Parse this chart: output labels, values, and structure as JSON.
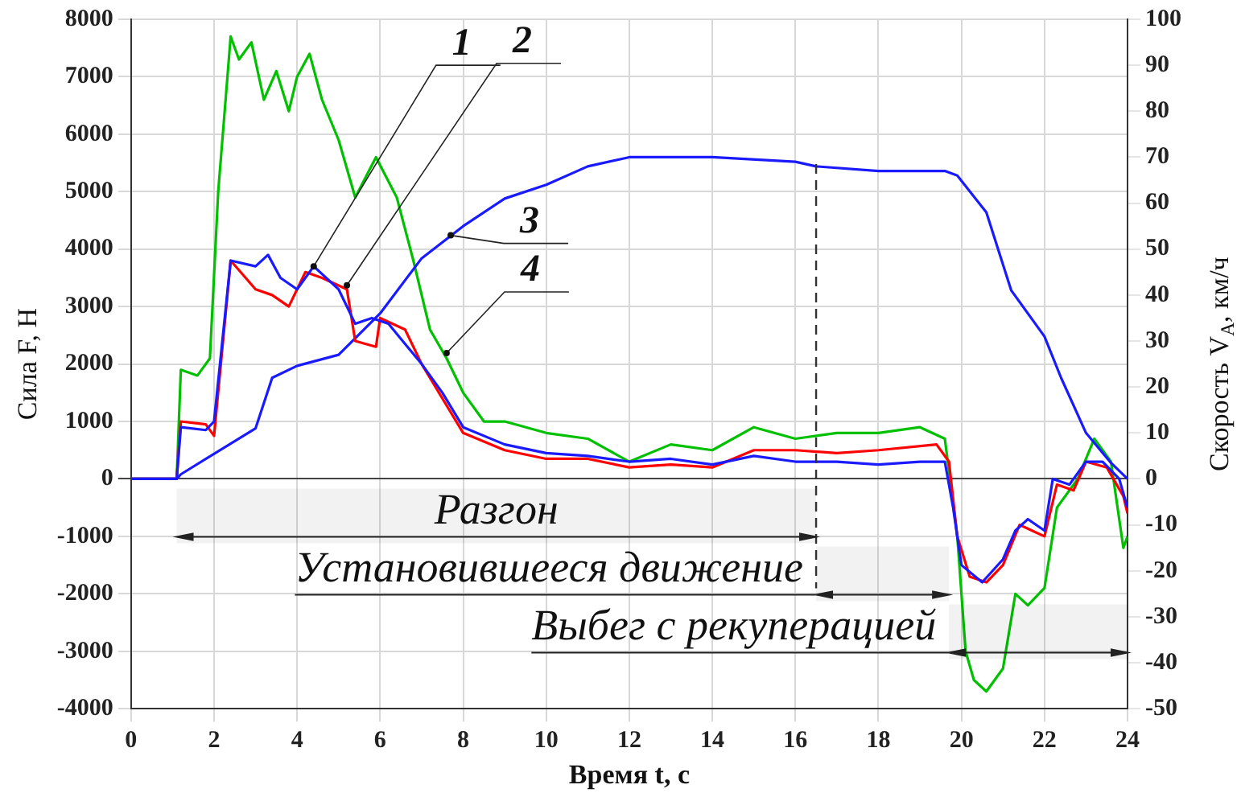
{
  "chart_data": {
    "type": "line",
    "xlabel": "Время t, с",
    "ylabel": "Сила F, Н",
    "y2label": "Скорость V$_{A}$, км/ч",
    "xlim": [
      0,
      24
    ],
    "xticks": [
      0,
      2,
      4,
      6,
      8,
      10,
      12,
      14,
      16,
      18,
      20,
      22,
      24
    ],
    "ylim": [
      -4000,
      8000
    ],
    "yticks": [
      -4000,
      -3000,
      -2000,
      -1000,
      0,
      1000,
      2000,
      3000,
      4000,
      5000,
      6000,
      7000,
      8000
    ],
    "y2lim": [
      -50,
      100
    ],
    "y2ticks": [
      -50,
      -40,
      -30,
      -20,
      -10,
      0,
      10,
      20,
      30,
      40,
      50,
      60,
      70,
      80,
      90,
      100
    ],
    "grid": true,
    "legend": false,
    "series": [
      {
        "color": "#1a1aff",
        "x": [
          0,
          1.1,
          1.2,
          1.8,
          2.0,
          2.4,
          3.0,
          3.3,
          3.6,
          4.0,
          4.4,
          5.0,
          5.4,
          5.8,
          6.2,
          7.0,
          7.5,
          8,
          9,
          10,
          11,
          12,
          13,
          14,
          15,
          16,
          17,
          18,
          19,
          19.6,
          19.8,
          20,
          20.5,
          21,
          21.3,
          21.6,
          22,
          22.2,
          22.6,
          23,
          23.4,
          23.8,
          24
        ],
        "values": [
          0,
          0,
          900,
          850,
          1000,
          3800,
          3700,
          3900,
          3500,
          3300,
          3700,
          3300,
          2700,
          2800,
          2700,
          2000,
          1500,
          900,
          600,
          450,
          400,
          300,
          350,
          250,
          400,
          300,
          300,
          250,
          300,
          300,
          -500,
          -1500,
          -1800,
          -1400,
          -900,
          -700,
          -900,
          0,
          -100,
          300,
          300,
          0,
          -500
        ]
      },
      {
        "color": "#ff0000",
        "x": [
          0,
          1.1,
          1.2,
          1.8,
          2.0,
          2.4,
          3.0,
          3.4,
          3.8,
          4.2,
          4.6,
          5.2,
          5.4,
          5.9,
          6.0,
          6.6,
          7.0,
          8,
          9,
          10,
          11,
          12,
          13,
          14,
          15,
          16,
          17,
          18,
          19.4,
          19.7,
          19.9,
          20.2,
          20.6,
          21,
          21.4,
          21.7,
          22,
          22.3,
          22.7,
          23,
          23.5,
          23.9,
          24
        ],
        "values": [
          0,
          0,
          1000,
          950,
          750,
          3800,
          3300,
          3200,
          3000,
          3600,
          3500,
          3300,
          2400,
          2300,
          2800,
          2600,
          2000,
          800,
          500,
          350,
          350,
          200,
          250,
          200,
          500,
          500,
          450,
          500,
          600,
          300,
          -1000,
          -1700,
          -1800,
          -1500,
          -800,
          -900,
          -1000,
          -100,
          -200,
          300,
          200,
          -300,
          -600
        ]
      },
      {
        "color": "#1a1aff",
        "axis": "y2",
        "x": [
          0,
          1.1,
          1.2,
          3.0,
          3.4,
          4,
          5,
          6,
          7,
          8,
          9,
          10,
          11,
          12,
          14,
          16,
          16.5,
          18,
          19.6,
          19.9,
          20.6,
          21.2,
          22,
          22.4,
          23,
          23.6,
          24
        ],
        "values": [
          0,
          0,
          1,
          11,
          22,
          24.6,
          27,
          36,
          48,
          55,
          61,
          64,
          68,
          70,
          70,
          69,
          68,
          67,
          67,
          66,
          58,
          41,
          31,
          22,
          10,
          3.5,
          0
        ]
      },
      {
        "color": "#00c000",
        "x": [
          0,
          1.1,
          1.2,
          1.6,
          1.9,
          2.1,
          2.4,
          2.6,
          2.9,
          3.2,
          3.5,
          3.8,
          4.0,
          4.3,
          4.6,
          5.0,
          5.4,
          5.9,
          6.4,
          6.8,
          7.2,
          7.6,
          8.0,
          8.5,
          9,
          10,
          11,
          12,
          13,
          14,
          15,
          16,
          17,
          18,
          19,
          19.6,
          19.9,
          20.1,
          20.3,
          20.6,
          21,
          21.3,
          21.6,
          22,
          22.3,
          22.8,
          23.2,
          23.6,
          23.9,
          24
        ],
        "values": [
          0,
          0,
          1900,
          1800,
          2100,
          5000,
          7700,
          7300,
          7600,
          6600,
          7100,
          6400,
          7000,
          7400,
          6600,
          5900,
          4900,
          5600,
          4900,
          3800,
          2600,
          2100,
          1500,
          1000,
          1000,
          800,
          700,
          300,
          600,
          500,
          900,
          700,
          800,
          800,
          900,
          700,
          -1000,
          -3000,
          -3500,
          -3700,
          -3300,
          -2000,
          -2200,
          -1900,
          -500,
          0,
          700,
          300,
          -1200,
          -1000
        ]
      }
    ],
    "ref_lines": [
      {
        "axis": "x",
        "value": 16.5,
        "line_style": "dashed"
      }
    ],
    "bands": [
      {
        "axis": "x",
        "from": 1.1,
        "to": 16.5,
        "label": "Разгон"
      },
      {
        "axis": "x",
        "from": 16.5,
        "to": 19.7,
        "label": "Установившееся движение"
      },
      {
        "axis": "x",
        "from": 19.7,
        "to": 24,
        "label": "Выбег с рекуперацией"
      }
    ],
    "annotations": [
      {
        "text": "1",
        "x": 4.4,
        "y": 3700
      },
      {
        "text": "2",
        "x": 5.2,
        "y": 3370
      },
      {
        "text": "3",
        "x": 7.7,
        "y": 4240
      },
      {
        "text": "4",
        "x": 7.6,
        "y": 2190
      }
    ]
  }
}
